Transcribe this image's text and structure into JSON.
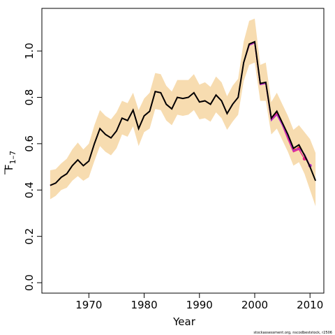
{
  "chart_data": {
    "type": "line",
    "xlabel": "Year",
    "ylabel": "F",
    "ylabel_sub": "1–7",
    "note": "stockassessment.org, nscodbeststock, r2506",
    "x": [
      1963,
      1964,
      1965,
      1966,
      1967,
      1968,
      1969,
      1970,
      1971,
      1972,
      1973,
      1974,
      1975,
      1976,
      1977,
      1978,
      1979,
      1980,
      1981,
      1982,
      1983,
      1984,
      1985,
      1986,
      1987,
      1988,
      1989,
      1990,
      1991,
      1992,
      1993,
      1994,
      1995,
      1996,
      1997,
      1998,
      1999,
      2000,
      2001,
      2002,
      2003,
      2004,
      2005,
      2006,
      2007,
      2008,
      2009,
      2010,
      2011
    ],
    "band_color": "#f7dcb0",
    "band_upper": [
      0.485,
      0.49,
      0.515,
      0.535,
      0.575,
      0.605,
      0.575,
      0.6,
      0.68,
      0.745,
      0.72,
      0.705,
      0.735,
      0.785,
      0.775,
      0.82,
      0.745,
      0.795,
      0.82,
      0.905,
      0.9,
      0.85,
      0.825,
      0.875,
      0.875,
      0.875,
      0.9,
      0.855,
      0.865,
      0.845,
      0.89,
      0.865,
      0.805,
      0.85,
      0.88,
      1.04,
      1.13,
      1.14,
      0.94,
      0.95,
      0.78,
      0.82,
      0.77,
      0.72,
      0.66,
      0.68,
      0.65,
      0.62,
      0.56
    ],
    "band_lower": [
      0.36,
      0.375,
      0.4,
      0.41,
      0.44,
      0.46,
      0.44,
      0.455,
      0.525,
      0.59,
      0.565,
      0.55,
      0.58,
      0.64,
      0.63,
      0.675,
      0.59,
      0.65,
      0.665,
      0.75,
      0.745,
      0.7,
      0.68,
      0.725,
      0.72,
      0.725,
      0.745,
      0.705,
      0.71,
      0.695,
      0.735,
      0.71,
      0.66,
      0.695,
      0.725,
      0.87,
      0.94,
      0.95,
      0.785,
      0.785,
      0.64,
      0.665,
      0.615,
      0.565,
      0.505,
      0.52,
      0.47,
      0.4,
      0.33
    ],
    "series": [
      {
        "color": "#ff3030",
        "values": [
          0.42,
          0.43,
          0.455,
          0.47,
          0.505,
          0.53,
          0.505,
          0.525,
          0.6,
          0.665,
          0.64,
          0.625,
          0.655,
          0.71,
          0.7,
          0.745,
          0.665,
          0.72,
          0.74,
          0.825,
          0.82,
          0.77,
          0.75,
          0.8,
          0.795,
          0.8,
          0.82,
          0.78,
          0.785,
          0.77,
          0.81,
          0.785,
          0.73,
          0.77,
          0.8,
          0.95,
          1.025,
          1.035,
          0.855,
          0.86,
          0.705,
          0.735,
          0.685,
          0.635,
          0.575,
          0.58,
          null,
          null,
          null
        ]
      },
      {
        "color": "#e7298a",
        "values": [
          0.42,
          0.43,
          0.455,
          0.47,
          0.505,
          0.53,
          0.505,
          0.525,
          0.6,
          0.665,
          0.64,
          0.625,
          0.655,
          0.71,
          0.7,
          0.745,
          0.665,
          0.72,
          0.74,
          0.825,
          0.82,
          0.77,
          0.75,
          0.8,
          0.795,
          0.8,
          0.82,
          0.78,
          0.785,
          0.77,
          0.81,
          0.785,
          0.73,
          0.77,
          0.8,
          0.95,
          1.025,
          1.035,
          0.855,
          0.86,
          0.705,
          0.73,
          0.68,
          0.62,
          0.565,
          0.575,
          0.535,
          null,
          null
        ]
      },
      {
        "color": "#b030c8",
        "values": [
          0.42,
          0.43,
          0.455,
          0.47,
          0.505,
          0.53,
          0.505,
          0.525,
          0.6,
          0.665,
          0.64,
          0.625,
          0.655,
          0.71,
          0.7,
          0.745,
          0.665,
          0.72,
          0.74,
          0.825,
          0.82,
          0.77,
          0.75,
          0.8,
          0.795,
          0.8,
          0.82,
          0.78,
          0.785,
          0.77,
          0.81,
          0.785,
          0.73,
          0.77,
          0.8,
          0.95,
          1.025,
          1.035,
          0.855,
          0.86,
          0.7,
          0.725,
          0.68,
          0.63,
          0.57,
          0.58,
          0.555,
          0.505,
          null
        ]
      },
      {
        "color": "#000000",
        "values": [
          0.42,
          0.43,
          0.455,
          0.47,
          0.505,
          0.53,
          0.505,
          0.525,
          0.6,
          0.665,
          0.64,
          0.625,
          0.655,
          0.71,
          0.7,
          0.745,
          0.665,
          0.72,
          0.74,
          0.825,
          0.82,
          0.77,
          0.75,
          0.8,
          0.795,
          0.8,
          0.82,
          0.78,
          0.785,
          0.77,
          0.81,
          0.785,
          0.73,
          0.77,
          0.8,
          0.95,
          1.03,
          1.04,
          0.86,
          0.865,
          0.71,
          0.74,
          0.69,
          0.64,
          0.58,
          0.595,
          0.55,
          0.5,
          0.44
        ]
      }
    ],
    "xlim": [
      1961.5,
      2012.5
    ],
    "ylim": [
      -0.045,
      1.184
    ],
    "xticks": [
      1970,
      1980,
      1990,
      2000,
      2010
    ],
    "yticks": [
      {
        "value": 0,
        "label": "0.0"
      },
      {
        "value": 0.2,
        "label": "0.2"
      },
      {
        "value": 0.4,
        "label": "0.4"
      },
      {
        "value": 0.6,
        "label": "0.6"
      },
      {
        "value": 0.8,
        "label": "0.8"
      },
      {
        "value": 1,
        "label": "1.0"
      }
    ]
  }
}
